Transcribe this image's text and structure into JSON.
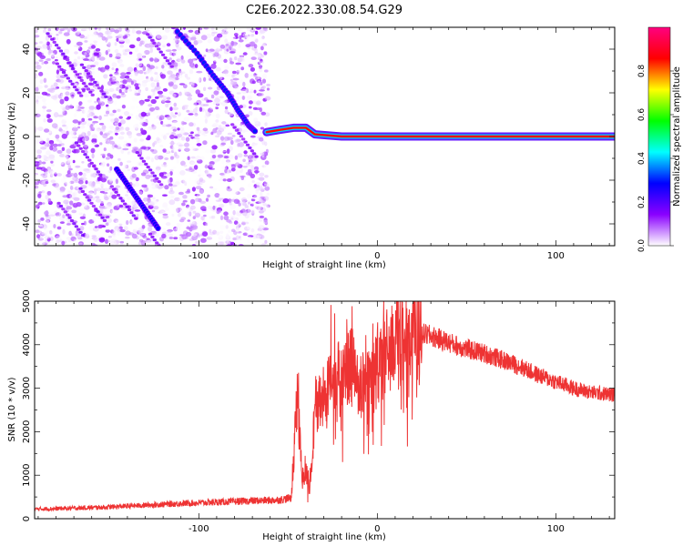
{
  "title": "C2E6.2022.330.08.54.G29",
  "chart_data": [
    {
      "type": "heatmap",
      "xlabel": "Height of straight line (km)",
      "ylabel": "Frequency (Hz)",
      "xlim": [
        -192,
        133
      ],
      "ylim": [
        -50,
        50
      ],
      "xticks": [
        -100,
        0,
        100
      ],
      "yticks": [
        -40,
        -20,
        0,
        20,
        40
      ],
      "colorbar": {
        "label": "Normalized spectral amplitude",
        "range": [
          0,
          1
        ],
        "ticks": [
          0.0,
          0.2,
          0.4,
          0.6,
          0.8
        ],
        "colormap": [
          "#ffffff",
          "#8a00ff",
          "#0000ff",
          "#00ffff",
          "#00ff00",
          "#ffff00",
          "#ff0000",
          "#ff0080"
        ]
      },
      "data_extent_x": [
        -192,
        -61
      ],
      "features": [
        {
          "name": "descending-line-upper",
          "x": [
            -112,
            -101,
            -92,
            -84,
            -78,
            -72,
            -68
          ],
          "y": [
            48,
            38,
            28,
            20,
            12,
            5,
            2
          ],
          "amplitude": 0.3
        },
        {
          "name": "descending-line-lower",
          "x": [
            -146,
            -140,
            -134,
            -128,
            -122
          ],
          "y": [
            -15,
            -22,
            -29,
            -36,
            -43
          ],
          "amplitude": 0.28
        },
        {
          "name": "carrier-0hz",
          "x": [
            -62,
            -55,
            -47,
            -40,
            -35,
            -20,
            0,
            20,
            50,
            80,
            108,
            133
          ],
          "y": [
            2,
            3,
            4,
            4,
            1,
            0,
            0,
            0,
            0,
            0,
            0,
            0
          ],
          "amplitude": 0.85
        }
      ]
    },
    {
      "type": "line",
      "xlabel": "Height of straight line (km)",
      "ylabel": "SNR (10 * v/v)",
      "xlim": [
        -192,
        133
      ],
      "ylim": [
        0,
        5000
      ],
      "xticks": [
        -100,
        0,
        100
      ],
      "yticks": [
        0,
        1000,
        2000,
        3000,
        4000,
        5000
      ],
      "color": "#ee3333",
      "x": [
        -192,
        -170,
        -150,
        -130,
        -110,
        -90,
        -70,
        -55,
        -48,
        -45,
        -42,
        -40,
        -38,
        -35,
        -30,
        -25,
        -20,
        -15,
        -10,
        -5,
        0,
        5,
        10,
        15,
        20,
        25,
        30,
        40,
        50,
        60,
        70,
        80,
        90,
        100,
        110,
        120,
        133
      ],
      "y": [
        220,
        240,
        270,
        310,
        350,
        380,
        410,
        430,
        480,
        2800,
        900,
        1200,
        600,
        2500,
        2800,
        3400,
        3100,
        3600,
        2900,
        3200,
        3400,
        3800,
        4100,
        4000,
        4200,
        4250,
        4200,
        4050,
        3900,
        3800,
        3650,
        3500,
        3300,
        3150,
        3000,
        2900,
        2850
      ]
    }
  ]
}
